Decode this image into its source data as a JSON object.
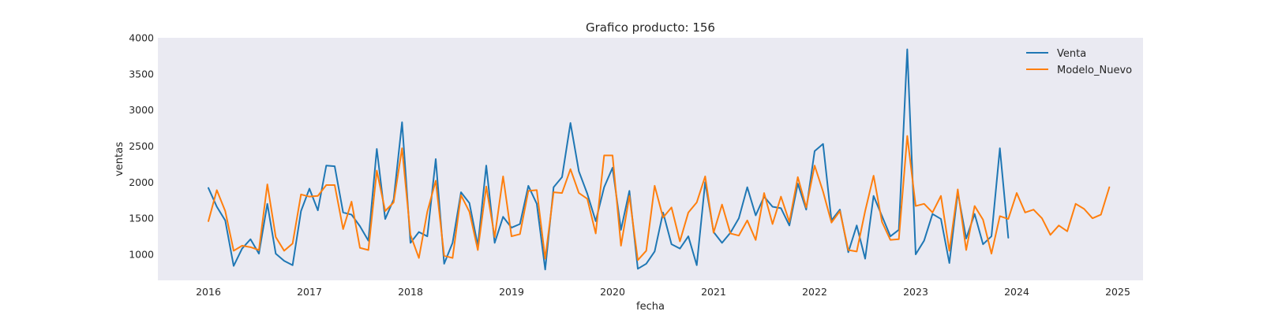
{
  "chart_data": {
    "type": "line",
    "title": "Grafico producto: 156",
    "xlabel": "fecha",
    "ylabel": "ventas",
    "x_ticks": [
      "2016",
      "2017",
      "2018",
      "2019",
      "2020",
      "2021",
      "2022",
      "2023",
      "2024",
      "2025"
    ],
    "y_ticks": [
      "1000",
      "1500",
      "2000",
      "2500",
      "3000",
      "3500",
      "4000"
    ],
    "xlim": [
      "2015-07",
      "2025-04"
    ],
    "ylim": [
      640,
      4000
    ],
    "grid": false,
    "legend_position": "top-right",
    "background_color": "#EAEAF2",
    "series": [
      {
        "name": "Venta",
        "color": "#1F77B4",
        "start": "2016-01",
        "values": [
          1920,
          1660,
          1470,
          840,
          1080,
          1210,
          1010,
          1700,
          1010,
          910,
          850,
          1600,
          1910,
          1610,
          2230,
          2220,
          1580,
          1550,
          1390,
          1190,
          2460,
          1490,
          1760,
          2830,
          1160,
          1310,
          1250,
          2320,
          870,
          1160,
          1860,
          1710,
          1120,
          2230,
          1160,
          1520,
          1370,
          1420,
          1950,
          1700,
          790,
          1930,
          2070,
          2820,
          2150,
          1840,
          1460,
          1930,
          2200,
          1340,
          1880,
          800,
          870,
          1040,
          1580,
          1140,
          1080,
          1250,
          850,
          2000,
          1310,
          1160,
          1300,
          1500,
          1930,
          1540,
          1800,
          1660,
          1640,
          1400,
          1980,
          1620,
          2430,
          2530,
          1470,
          1620,
          1030,
          1400,
          940,
          1810,
          1530,
          1250,
          1340,
          3840,
          1000,
          1190,
          1560,
          1490,
          880,
          1860,
          1220,
          1560,
          1140,
          1250,
          2470,
          1230
        ]
      },
      {
        "name": "Modelo_Nuevo",
        "color": "#FF7F0E",
        "start": "2016-01",
        "values": [
          1460,
          1890,
          1600,
          1050,
          1120,
          1100,
          1060,
          1970,
          1240,
          1050,
          1150,
          1830,
          1800,
          1810,
          1960,
          1960,
          1350,
          1730,
          1090,
          1060,
          2160,
          1600,
          1720,
          2470,
          1270,
          950,
          1590,
          2020,
          980,
          950,
          1820,
          1590,
          1060,
          1940,
          1240,
          2080,
          1250,
          1280,
          1880,
          1890,
          940,
          1860,
          1850,
          2180,
          1850,
          1770,
          1290,
          2370,
          2370,
          1120,
          1810,
          920,
          1050,
          1950,
          1510,
          1650,
          1180,
          1580,
          1720,
          2080,
          1300,
          1690,
          1290,
          1260,
          1470,
          1200,
          1850,
          1420,
          1800,
          1450,
          2070,
          1650,
          2230,
          1870,
          1440,
          1600,
          1060,
          1040,
          1600,
          2090,
          1450,
          1200,
          1210,
          2640,
          1670,
          1700,
          1580,
          1810,
          1050,
          1900,
          1060,
          1670,
          1480,
          1010,
          1530,
          1490,
          1850,
          1580,
          1620,
          1500,
          1270,
          1400,
          1320,
          1700,
          1630,
          1500,
          1550,
          1930
        ]
      }
    ]
  }
}
